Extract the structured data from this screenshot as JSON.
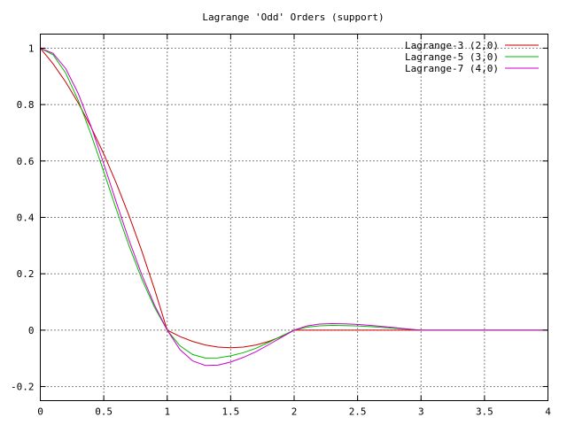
{
  "chart_data": {
    "type": "line",
    "title": "Lagrange 'Odd' Orders (support)",
    "xlabel": "",
    "ylabel": "",
    "xlim": [
      0,
      4
    ],
    "ylim": [
      -0.25,
      1.05
    ],
    "grid": true,
    "legend_position": "top-right",
    "x_ticks": [
      {
        "value": 0,
        "label": "0"
      },
      {
        "value": 0.5,
        "label": "0.5"
      },
      {
        "value": 1,
        "label": "1"
      },
      {
        "value": 1.5,
        "label": "1.5"
      },
      {
        "value": 2,
        "label": "2"
      },
      {
        "value": 2.5,
        "label": "2.5"
      },
      {
        "value": 3,
        "label": "3"
      },
      {
        "value": 3.5,
        "label": "3.5"
      },
      {
        "value": 4,
        "label": "4"
      }
    ],
    "y_ticks": [
      {
        "value": 1,
        "label": "1"
      },
      {
        "value": 0.8,
        "label": "0.8"
      },
      {
        "value": 0.6,
        "label": "0.6"
      },
      {
        "value": 0.4,
        "label": "0.4"
      },
      {
        "value": 0.2,
        "label": "0.2"
      },
      {
        "value": 0,
        "label": "0"
      },
      {
        "value": -0.2,
        "label": "-0.2"
      }
    ],
    "x": [
      0,
      0.1,
      0.2,
      0.3,
      0.4,
      0.5,
      0.6,
      0.7,
      0.8,
      0.9,
      1.0,
      1.1,
      1.2,
      1.3,
      1.4,
      1.5,
      1.6,
      1.7,
      1.8,
      1.9,
      2.0,
      2.1,
      2.2,
      2.3,
      2.4,
      2.5,
      2.6,
      2.7,
      2.8,
      2.9,
      3.0,
      3.2,
      3.4,
      3.6,
      3.8,
      4.0
    ],
    "series": [
      {
        "name": "Lagrange-3 (2,0)",
        "color": "#cc0000",
        "values": [
          1.0,
          0.945,
          0.88,
          0.805,
          0.72,
          0.625,
          0.52,
          0.405,
          0.28,
          0.145,
          0.0,
          -0.0225,
          -0.04,
          -0.0525,
          -0.06,
          -0.0625,
          -0.06,
          -0.0525,
          -0.04,
          -0.0225,
          0.0,
          0.0,
          0.0,
          0.0,
          0.0,
          0.0,
          0.0,
          0.0,
          0.0,
          0.0,
          0.0,
          0.0,
          0.0,
          0.0,
          0.0,
          0.0
        ]
      },
      {
        "name": "Lagrange-5 (3,0)",
        "color": "#00bb00",
        "values": [
          1.0,
          0.977,
          0.912,
          0.814,
          0.694,
          0.562,
          0.427,
          0.298,
          0.181,
          0.081,
          0.0,
          -0.0554,
          -0.0864,
          -0.0988,
          -0.0984,
          -0.0909,
          -0.0798,
          -0.0642,
          -0.0432,
          -0.0211,
          0.0,
          0.0105,
          0.0154,
          0.0169,
          0.0163,
          0.0148,
          0.0126,
          0.0096,
          0.0063,
          0.003,
          0.0,
          0.0,
          0.0,
          0.0,
          0.0,
          0.0
        ]
      },
      {
        "name": "Lagrange-7 (4,0)",
        "color": "#cc00cc",
        "values": [
          1.0,
          0.982,
          0.928,
          0.838,
          0.722,
          0.59,
          0.452,
          0.318,
          0.196,
          0.089,
          0.0,
          -0.0688,
          -0.109,
          -0.125,
          -0.124,
          -0.113,
          -0.0966,
          -0.0763,
          -0.0514,
          -0.0257,
          0.0,
          0.0151,
          0.0217,
          0.0233,
          0.0224,
          0.0203,
          0.0171,
          0.013,
          0.0085,
          0.004,
          0.0,
          0.0,
          0.0,
          0.0,
          0.0,
          0.0
        ]
      }
    ]
  }
}
